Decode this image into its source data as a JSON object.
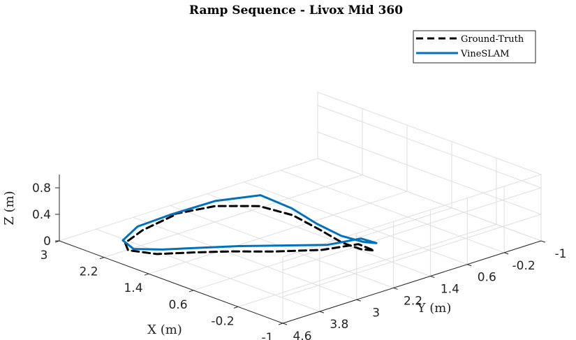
{
  "chart_data": {
    "type": "line",
    "projection": "3d",
    "title": "Ramp Sequence - Livox Mid 360",
    "xlabel": "X (m)",
    "ylabel": "Y (m)",
    "zlabel": "Z (m)",
    "xlim": [
      -1,
      3
    ],
    "ylim": [
      -1,
      4.6
    ],
    "zlim": [
      0,
      1
    ],
    "x_ticks": [
      "3",
      "2.2",
      "1.4",
      "0.6",
      "-0.2",
      "-1"
    ],
    "y_ticks": [
      "-1",
      "-0.2",
      "0.6",
      "1.4",
      "2.2",
      "3",
      "3.8",
      "4.6"
    ],
    "z_ticks": [
      "0",
      "0.4",
      "0.8"
    ],
    "grid": true,
    "legend": {
      "position": "top-right"
    },
    "series": [
      {
        "name": "Ground-Truth",
        "color": "#000000",
        "style": "dashed",
        "x": [
          2.45,
          2.5,
          2.4,
          2.1,
          1.5,
          0.9,
          0.3,
          -0.3,
          -0.8,
          -0.95,
          -0.9,
          -0.5,
          0.0,
          0.6,
          1.3,
          1.9,
          2.35,
          2.5
        ],
        "y": [
          2.8,
          3.4,
          3.9,
          4.2,
          4.3,
          4.25,
          4.15,
          3.95,
          3.5,
          2.9,
          2.5,
          2.3,
          2.1,
          1.85,
          1.6,
          1.6,
          2.0,
          2.8
        ],
        "z": [
          0.15,
          0.05,
          0.0,
          0.05,
          0.2,
          0.4,
          0.58,
          0.72,
          0.8,
          0.8,
          0.6,
          0.45,
          0.35,
          0.3,
          0.25,
          0.2,
          0.15,
          0.15
        ]
      },
      {
        "name": "VineSLAM",
        "color": "#0072BD",
        "style": "solid",
        "x": [
          2.5,
          2.55,
          2.4,
          2.0,
          1.4,
          0.8,
          0.2,
          -0.4,
          -0.85,
          -1.0,
          -0.9,
          -0.5,
          0.1,
          0.7,
          1.4,
          2.0,
          2.4,
          2.5
        ],
        "y": [
          2.8,
          3.45,
          3.95,
          4.2,
          4.3,
          4.25,
          4.1,
          3.85,
          3.45,
          2.9,
          2.45,
          2.25,
          2.0,
          1.8,
          1.5,
          1.45,
          1.95,
          2.8
        ],
        "z": [
          0.15,
          0.1,
          0.05,
          0.1,
          0.3,
          0.5,
          0.68,
          0.82,
          0.88,
          0.9,
          0.7,
          0.55,
          0.4,
          0.35,
          0.3,
          0.3,
          0.2,
          0.15
        ]
      }
    ]
  }
}
